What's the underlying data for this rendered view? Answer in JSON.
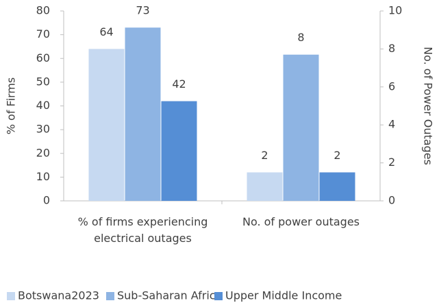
{
  "chart_data": {
    "type": "bar",
    "categories": [
      "% of firms experiencing electrical outages",
      "No. of power outages"
    ],
    "category_axes": [
      "y",
      "y2"
    ],
    "series": [
      {
        "name": "Botswana2023",
        "color": "#c6d9f1",
        "values": [
          64,
          1.5
        ],
        "value_labels": [
          "64",
          "2"
        ]
      },
      {
        "name": "Sub-Saharan Africa",
        "color": "#8eb4e3",
        "values": [
          73,
          7.7
        ],
        "value_labels": [
          "73",
          "8"
        ]
      },
      {
        "name": "Upper Middle Income",
        "color": "#558ed5",
        "values": [
          42,
          1.5
        ],
        "value_labels": [
          "42",
          "2"
        ]
      }
    ],
    "ylabel": "% of Firms",
    "y2label": "No. of Power Outages",
    "ylim": [
      0,
      80
    ],
    "yticks": [
      0,
      10,
      20,
      30,
      40,
      50,
      60,
      70,
      80
    ],
    "y2lim": [
      0,
      10
    ],
    "y2ticks": [
      0,
      2,
      4,
      6,
      8,
      10
    ],
    "legend": "bottom"
  }
}
